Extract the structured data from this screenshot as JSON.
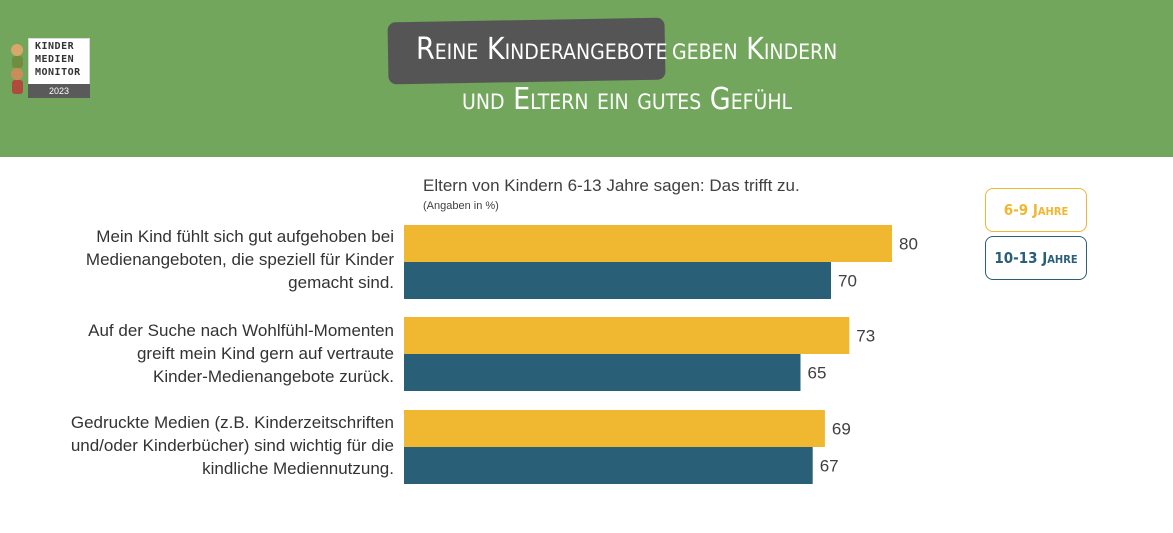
{
  "header": {
    "title_highlight": "Reine Kinderangebote",
    "title_rest": "geben Kindern",
    "title_line2": "und Eltern ein gutes Gefühl",
    "bg_color": "#72a65c",
    "highlight_color": "#555555"
  },
  "logo": {
    "line1": "KINDER",
    "line2": "MEDIEN",
    "line3": "MONITOR",
    "year": "2023"
  },
  "chart_data": {
    "type": "bar",
    "orientation": "horizontal",
    "subtitle": "Eltern von Kindern 6-13 Jahre sagen: Das trifft zu.",
    "note": "(Angaben in %)",
    "categories": [
      "Mein Kind fühlt sich gut aufgehoben bei Medienangeboten, die speziell für Kinder gemacht sind.",
      "Auf der Suche nach Wohlfühl-Momenten greift mein Kind gern auf vertraute Kinder-Medienangebote zurück.",
      "Gedruckte Medien (z.B. Kinderzeitschriften und/oder Kinderbücher) sind wichtig für die kindliche Mediennutzung."
    ],
    "category_lines": [
      [
        "Mein Kind fühlt sich gut aufgehoben bei",
        "Medienangeboten, die speziell für Kinder",
        "gemacht sind."
      ],
      [
        "Auf der Suche nach Wohlfühl-Momenten",
        "greift mein Kind gern auf vertraute",
        "Kinder-Medienangebote zurück."
      ],
      [
        "Gedruckte Medien (z.B. Kinderzeitschriften",
        "und/oder Kinderbücher) sind wichtig für die",
        "kindliche Mediennutzung."
      ]
    ],
    "series": [
      {
        "name": "6-9 Jahre",
        "color": "#f0b731",
        "values": [
          80,
          73,
          69
        ]
      },
      {
        "name": "10-13 Jahre",
        "color": "#2a5f78",
        "values": [
          70,
          65,
          67
        ]
      }
    ],
    "xlim": [
      0,
      100
    ],
    "grid": false,
    "legend_position": "right"
  }
}
